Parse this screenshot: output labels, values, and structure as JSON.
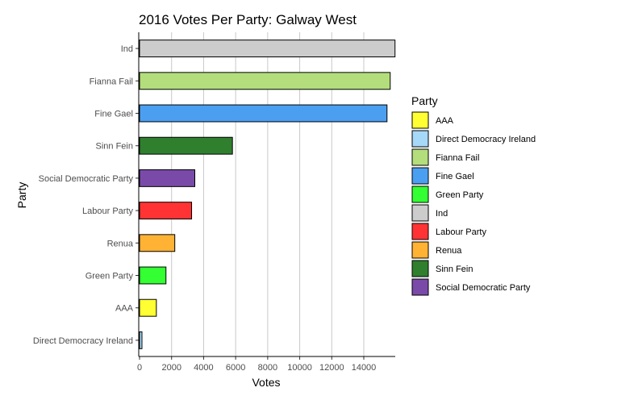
{
  "chart_data": {
    "type": "bar",
    "orientation": "horizontal",
    "title": "2016 Votes Per Party: Galway West",
    "xlabel": "Votes",
    "ylabel": "Party",
    "xlim": [
      0,
      16000
    ],
    "xticks": [
      0,
      2000,
      4000,
      6000,
      8000,
      10000,
      12000,
      14000
    ],
    "grid": "vertical major lines",
    "legend_position": "right",
    "legend_title": "Party",
    "categories": [
      "Ind",
      "Fianna Fail",
      "Fine  Gael",
      "Sinn Fein",
      "Social Democratic Party",
      "Labour Party",
      "Renua",
      "Green Party",
      "AAA",
      "Direct Democracy Ireland"
    ],
    "values": [
      15950,
      15650,
      15450,
      5800,
      3450,
      3250,
      2200,
      1650,
      1050,
      150
    ],
    "colors": {
      "AAA": "#ffff33",
      "Direct Democracy Ireland": "#a6d8f8",
      "Fianna Fail": "#b3de7b",
      "Fine  Gael": "#4b9ff1",
      "Green Party": "#33ff33",
      "Ind": "#cccccc",
      "Labour Party": "#ff3333",
      "Renua": "#ffb233",
      "Sinn Fein": "#2f7f2f",
      "Social Democratic Party": "#7a4aa8"
    },
    "legend": [
      "AAA",
      "Direct Democracy Ireland",
      "Fianna Fail",
      "Fine  Gael",
      "Green Party",
      "Ind",
      "Labour Party",
      "Renua",
      "Sinn Fein",
      "Social Democratic Party"
    ]
  }
}
